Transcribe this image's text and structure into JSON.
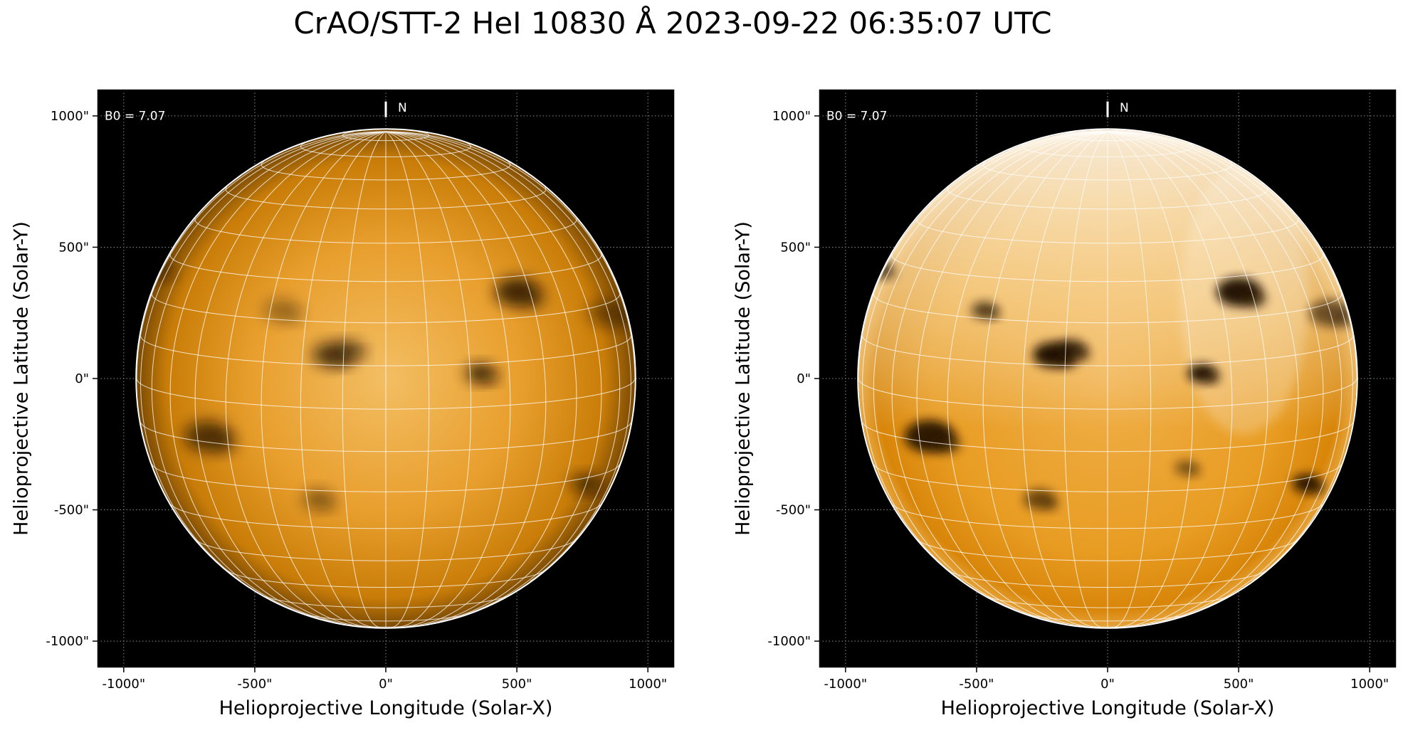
{
  "figure": {
    "title": "CrAO/STT-2 HeI 10830 Å 2023-09-22 06:35:07 UTC"
  },
  "colors": {
    "sky": "#000000",
    "disk_base": "#e0900a",
    "disk_light": "#f3be63",
    "grid": "#ffffff",
    "frame": "#000000"
  },
  "panels": [
    {
      "id": "left",
      "b0_label": "B0 = 7.07",
      "north_label": "N",
      "xlabel": "Helioprojective Longitude (Solar-X)",
      "ylabel": "Helioprojective Latitude (Solar-Y)",
      "x_ticks": [
        "-1000\"",
        "-500\"",
        "0\"",
        "500\"",
        "1000\""
      ],
      "y_ticks": [
        "1000\"",
        "500\"",
        "0\"",
        "-500\"",
        "-1000\""
      ],
      "x_tick_values": [
        -1000,
        -500,
        0,
        500,
        1000
      ],
      "y_tick_values": [
        1000,
        500,
        0,
        -500,
        -1000
      ],
      "xlim": [
        -1100,
        1100
      ],
      "ylim": [
        -1100,
        1100
      ],
      "solar_radius_arcsec": 950,
      "b0_deg": 7.07,
      "style": "smooth",
      "features": [
        {
          "x": -210,
          "y": 90,
          "size": 70,
          "strength": 0.75
        },
        {
          "x": -140,
          "y": 110,
          "size": 55,
          "strength": 0.6
        },
        {
          "x": 360,
          "y": 20,
          "size": 55,
          "strength": 0.85
        },
        {
          "x": 500,
          "y": 330,
          "size": 85,
          "strength": 0.8
        },
        {
          "x": -680,
          "y": -220,
          "size": 90,
          "strength": 0.7
        },
        {
          "x": 760,
          "y": -400,
          "size": 55,
          "strength": 0.7
        },
        {
          "x": -260,
          "y": -460,
          "size": 60,
          "strength": 0.45
        },
        {
          "x": 850,
          "y": 250,
          "size": 80,
          "strength": 0.45
        },
        {
          "x": -880,
          "y": 420,
          "size": 60,
          "strength": 0.45
        },
        {
          "x": -400,
          "y": 260,
          "size": 70,
          "strength": 0.35
        }
      ]
    },
    {
      "id": "right",
      "b0_label": "B0 = 7.07",
      "north_label": "N",
      "xlabel": "Helioprojective Longitude (Solar-X)",
      "ylabel": "Helioprojective Latitude (Solar-Y)",
      "x_ticks": [
        "-1000\"",
        "-500\"",
        "0\"",
        "500\"",
        "1000\""
      ],
      "y_ticks": [
        "1000\"",
        "500\"",
        "0\"",
        "-500\"",
        "-1000\""
      ],
      "x_tick_values": [
        -1000,
        -500,
        0,
        500,
        1000
      ],
      "y_tick_values": [
        1000,
        500,
        0,
        -500,
        -1000
      ],
      "xlim": [
        -1100,
        1100
      ],
      "ylim": [
        -1100,
        1100
      ],
      "solar_radius_arcsec": 950,
      "b0_deg": 7.07,
      "style": "contrast",
      "features": [
        {
          "x": -210,
          "y": 90,
          "size": 75,
          "strength": 0.95
        },
        {
          "x": -140,
          "y": 110,
          "size": 60,
          "strength": 0.8
        },
        {
          "x": 360,
          "y": 20,
          "size": 55,
          "strength": 0.95
        },
        {
          "x": 500,
          "y": 330,
          "size": 85,
          "strength": 0.95
        },
        {
          "x": -680,
          "y": -220,
          "size": 95,
          "strength": 0.9
        },
        {
          "x": 760,
          "y": -400,
          "size": 55,
          "strength": 0.9
        },
        {
          "x": -260,
          "y": -460,
          "size": 60,
          "strength": 0.6
        },
        {
          "x": 850,
          "y": 250,
          "size": 80,
          "strength": 0.6
        },
        {
          "x": -880,
          "y": 420,
          "size": 60,
          "strength": 0.6
        },
        {
          "x": -470,
          "y": 260,
          "size": 50,
          "strength": 0.7
        },
        {
          "x": 300,
          "y": -340,
          "size": 45,
          "strength": 0.5
        }
      ]
    }
  ]
}
